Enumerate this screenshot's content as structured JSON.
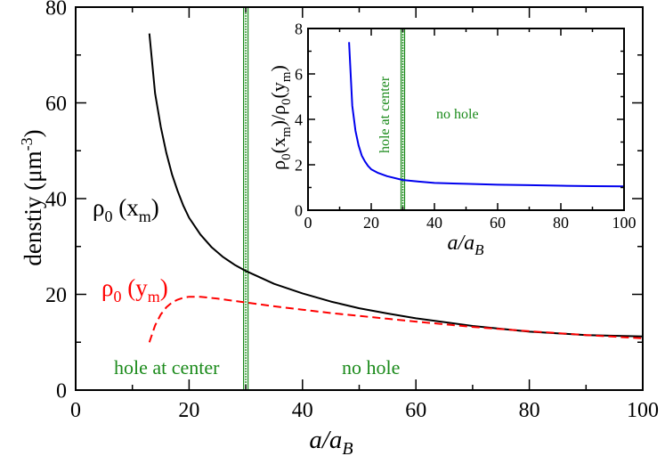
{
  "chart_data": [
    {
      "id": "main",
      "type": "line",
      "xlabel_main": "a/a",
      "xlabel_sub": "B",
      "ylabel": "denstiy (μm",
      "ylabel_sup": "-3",
      "ylabel_close": ")",
      "xlim": [
        0,
        100
      ],
      "ylim": [
        0,
        80
      ],
      "xticks": [
        0,
        20,
        40,
        60,
        80,
        100
      ],
      "yticks": [
        0,
        20,
        40,
        60,
        80
      ],
      "x_tick_labels": [
        "0",
        "20",
        "40",
        "60",
        "80",
        "100"
      ],
      "y_tick_labels": [
        "0",
        "20",
        "40",
        "60",
        "80"
      ],
      "vline_x": 30,
      "vline_color": "#1a8a1a",
      "series": [
        {
          "name": "rho0_xm",
          "color": "#000000",
          "dashed": false,
          "x": [
            13,
            14,
            15,
            16,
            17,
            18,
            19,
            20,
            22,
            24,
            26,
            28,
            30,
            35,
            40,
            45,
            50,
            55,
            60,
            70,
            80,
            90,
            100
          ],
          "y": [
            74.5,
            62,
            55,
            49.5,
            45,
            41.5,
            38.5,
            36,
            32.5,
            29.8,
            27.8,
            26.2,
            24.9,
            22.2,
            20.2,
            18.5,
            17.1,
            16,
            15,
            13.4,
            12.2,
            11.5,
            11.2
          ]
        },
        {
          "name": "rho0_ym",
          "color": "#ff0000",
          "dashed": true,
          "x": [
            13,
            14,
            15,
            16,
            17,
            18,
            19,
            20,
            22,
            25,
            30,
            35,
            40,
            45,
            50,
            55,
            60,
            70,
            80,
            90,
            100
          ],
          "y": [
            10,
            13.5,
            15.8,
            17.3,
            18.3,
            18.9,
            19.3,
            19.5,
            19.5,
            19.1,
            18.3,
            17.5,
            16.8,
            16.1,
            15.5,
            14.9,
            14.3,
            13.2,
            12.3,
            11.5,
            10.8
          ]
        }
      ],
      "labels": {
        "rho_x": "ρ",
        "rho_x_sub": "0",
        "rho_x_rest": " (x",
        "rho_x_sub2": "m",
        "rho_x_close": ")",
        "rho_y": "ρ",
        "rho_y_sub": "0",
        "rho_y_rest": " (y",
        "rho_y_sub2": "m",
        "rho_y_close": ")",
        "hole_at_center": "hole at center",
        "no_hole": "no hole"
      }
    },
    {
      "id": "inset",
      "type": "line",
      "xlabel_main": "a/a",
      "xlabel_sub": "B",
      "ylabel_parts": [
        "ρ",
        "0",
        "(x",
        "m",
        ")/ρ",
        "0",
        "(y",
        "m",
        ")"
      ],
      "xlim": [
        0,
        100
      ],
      "ylim": [
        0,
        8
      ],
      "xticks": [
        0,
        20,
        40,
        60,
        80,
        100
      ],
      "yticks": [
        0,
        2,
        4,
        6,
        8
      ],
      "x_tick_labels": [
        "0",
        "20",
        "40",
        "60",
        "80",
        "100"
      ],
      "y_tick_labels": [
        "0",
        "2",
        "4",
        "6",
        "8"
      ],
      "vline_x": 30,
      "vline_color": "#1a8a1a",
      "series": [
        {
          "name": "ratio",
          "color": "#0000ee",
          "dashed": false,
          "x": [
            13,
            14,
            15,
            16,
            17,
            18,
            19,
            20,
            22,
            25,
            30,
            35,
            40,
            50,
            60,
            70,
            80,
            90,
            100
          ],
          "y": [
            7.4,
            4.6,
            3.5,
            2.85,
            2.4,
            2.15,
            1.95,
            1.8,
            1.65,
            1.5,
            1.33,
            1.26,
            1.2,
            1.16,
            1.12,
            1.1,
            1.08,
            1.06,
            1.05
          ]
        }
      ],
      "labels": {
        "hole_at_center": "hole at center",
        "no_hole": "no hole"
      }
    }
  ],
  "colors": {
    "green": "#1a8a1a",
    "red": "#ff0000",
    "blue": "#0000ee",
    "black": "#000000"
  }
}
